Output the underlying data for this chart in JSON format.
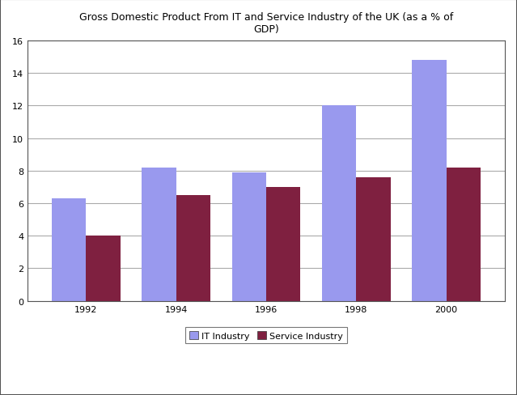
{
  "title": "Gross Domestic Product From IT and Service Industry of the UK (as a % of\nGDP)",
  "years": [
    "1992",
    "1994",
    "1996",
    "1998",
    "2000"
  ],
  "it_values": [
    6.3,
    8.2,
    7.9,
    12.0,
    14.8
  ],
  "service_values": [
    4.0,
    6.5,
    7.0,
    7.6,
    8.2
  ],
  "it_color": "#9999ee",
  "service_color": "#7f2040",
  "ylim": [
    0,
    16
  ],
  "yticks": [
    0,
    2,
    4,
    6,
    8,
    10,
    12,
    14,
    16
  ],
  "bar_width": 0.38,
  "legend_labels": [
    "IT Industry",
    "Service Industry"
  ],
  "background_color": "#ffffff",
  "grid_color": "#aaaaaa",
  "title_fontsize": 9,
  "tick_fontsize": 8,
  "legend_fontsize": 8
}
